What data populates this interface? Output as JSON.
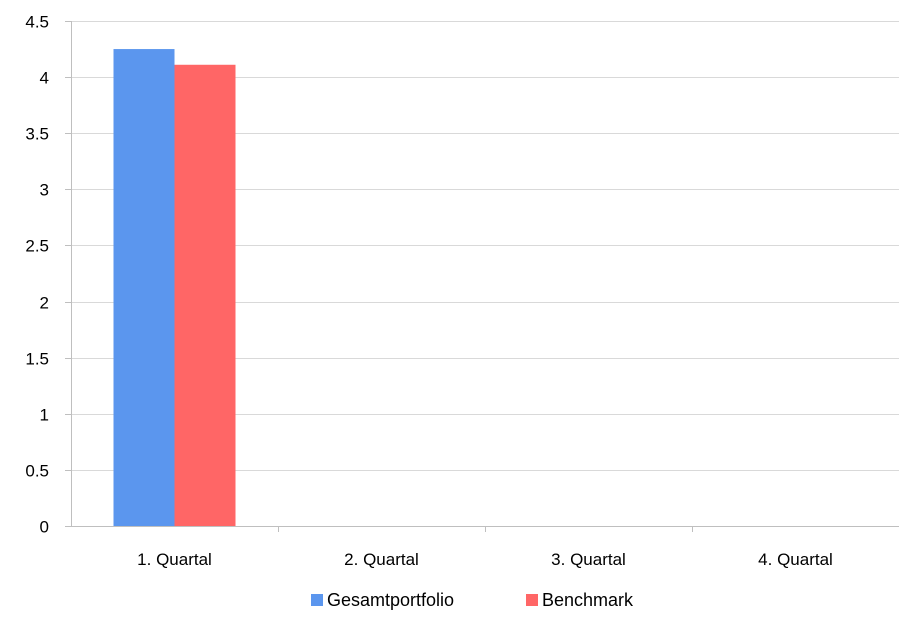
{
  "chart_data": {
    "type": "bar",
    "categories": [
      "1. Quartal",
      "2. Quartal",
      "3. Quartal",
      "4. Quartal"
    ],
    "series": [
      {
        "name": "Gesamtportfolio",
        "values": [
          4.25,
          0,
          0,
          0
        ],
        "color": "#5B96EE"
      },
      {
        "name": "Benchmark",
        "values": [
          4.11,
          0,
          0,
          0
        ],
        "color": "#FF6666"
      }
    ],
    "title": "",
    "xlabel": "",
    "ylabel": "",
    "ylim": [
      0,
      4.5
    ],
    "yticks": [
      "0",
      "0.5",
      "1",
      "1.5",
      "2",
      "2.5",
      "3",
      "3.5",
      "4",
      "4.5"
    ],
    "grid": true,
    "legend_position": "bottom",
    "gridline_color": "#D9D9D9",
    "axis_color": "#BFBFBF"
  }
}
